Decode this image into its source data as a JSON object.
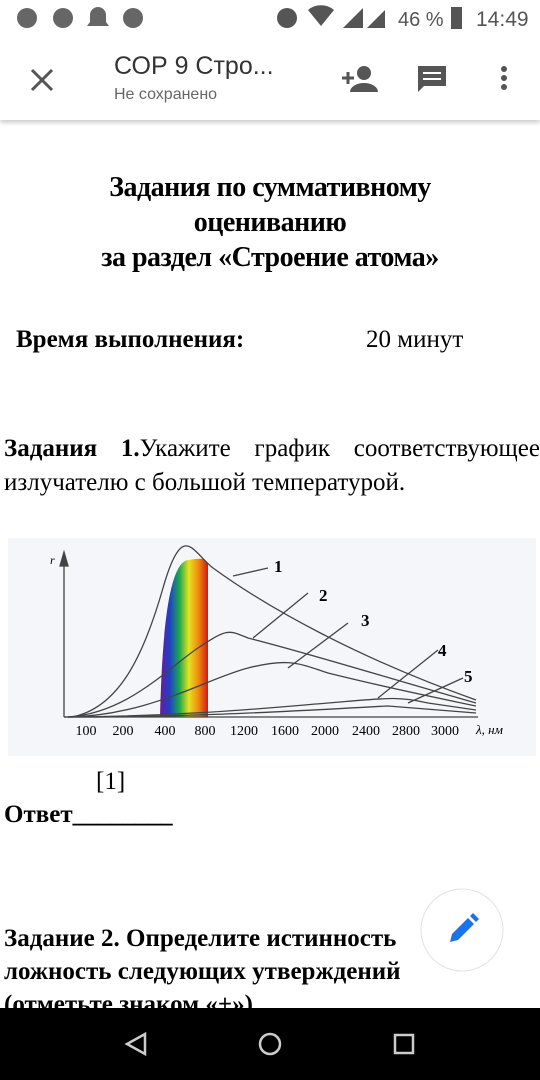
{
  "status_bar": {
    "battery": "46 %",
    "time": "14:49"
  },
  "app_bar": {
    "title": "СОР 9 Стро...",
    "subtitle": "Не сохранено"
  },
  "document": {
    "heading": [
      "Задания по суммативному",
      "оцениванию",
      "за раздел «Строение атома»"
    ],
    "time_label": "Время выполнения:",
    "time_value": "20 минут",
    "task1_label": "Задания",
    "task1_number": "1.",
    "task1_text": "Укажите график соответствующее излучателю с большой температурой.",
    "figure": {
      "y_label": "r",
      "x_unit": "λ, нм",
      "x_ticks": [
        "100",
        "200",
        "400",
        "800",
        "1200",
        "1600",
        "2000",
        "2400",
        "2800",
        "3000"
      ],
      "curve_labels": [
        "1",
        "2",
        "3",
        "4",
        "5"
      ]
    },
    "score": "[1]",
    "answer": "Ответ________",
    "task2": "Задание 2. Определите истинность ложность следующих утверждений (отметьте знаком «+»)"
  }
}
